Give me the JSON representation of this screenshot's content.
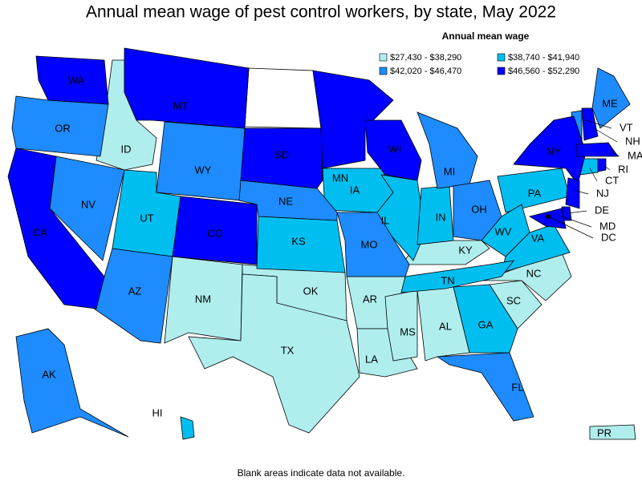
{
  "title": "Annual mean wage of pest control workers, by state, May 2022",
  "legend": {
    "title": "Annual mean wage",
    "bins": [
      {
        "label": "$27,430 - $38,290",
        "color": "#b0eeee",
        "states": [
          "ID",
          "NM",
          "OK",
          "TX",
          "AR",
          "LA",
          "MS",
          "AL",
          "KY",
          "NC",
          "SC",
          "PR"
        ]
      },
      {
        "label": "$38,740 - $41,940",
        "color": "#00bff0",
        "states": [
          "UT",
          "KS",
          "IA",
          "IL",
          "IN",
          "PA",
          "WV",
          "VA",
          "TN",
          "GA",
          "HI",
          "CT",
          "DC"
        ]
      },
      {
        "label": "$42,020 - $46,470",
        "color": "#1e8cff",
        "states": [
          "OR",
          "NV",
          "AZ",
          "WY",
          "NE",
          "MO",
          "MI",
          "OH",
          "FL",
          "AK",
          "ME",
          "VT"
        ]
      },
      {
        "label": "$46,560 - $52,290",
        "color": "#0000ff",
        "states": [
          "WA",
          "CA",
          "MT",
          "CO",
          "SD",
          "MN",
          "WI",
          "NY",
          "NJ",
          "NH",
          "MA",
          "RI",
          "DE",
          "MD"
        ]
      }
    ]
  },
  "footnote": "Blank areas indicate data not available."
}
